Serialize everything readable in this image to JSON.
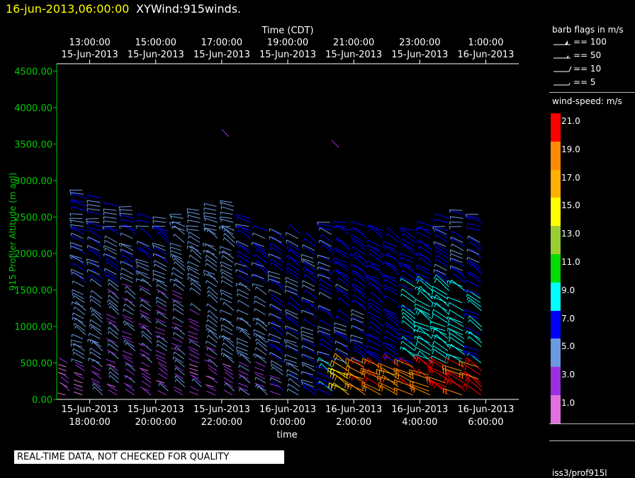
{
  "header": {
    "datetime": "16-jun-2013,06:00:00",
    "product": "XYWind:915winds."
  },
  "legend": {
    "barb_title": "barb flags in m/s",
    "barbs": [
      {
        "label": "== 100",
        "icon": "barb-flag-100"
      },
      {
        "label": "== 50",
        "icon": "barb-flag-50"
      },
      {
        "label": "== 10",
        "icon": "barb-flag-10"
      },
      {
        "label": "== 5",
        "icon": "barb-flag-5"
      }
    ],
    "colorbar_title": "wind-speed: m/s",
    "colorbar": [
      {
        "label": "21.0",
        "color": "#ff0000"
      },
      {
        "label": "19.0",
        "color": "#ff8c00"
      },
      {
        "label": "17.0",
        "color": "#ffb000"
      },
      {
        "label": "15.0",
        "color": "#ffff00"
      },
      {
        "label": "13.0",
        "color": "#9acd32"
      },
      {
        "label": "11.0",
        "color": "#00dd00"
      },
      {
        "label": "9.0",
        "color": "#00ffff"
      },
      {
        "label": "7.0",
        "color": "#0000ff"
      },
      {
        "label": "5.0",
        "color": "#6a9ae0"
      },
      {
        "label": "3.0",
        "color": "#9a30e0"
      },
      {
        "label": "1.0",
        "color": "#e070e0"
      }
    ],
    "station": "iss3/prof915l"
  },
  "disclaimer": "REAL-TIME DATA, NOT CHECKED FOR QUALITY",
  "chart_data": {
    "type": "scatter",
    "subtype": "wind-barb time-height",
    "ylabel": "915 Profiler Altitude (m agl)",
    "ylim": [
      0,
      4600
    ],
    "yticks": [
      "0.00",
      "500.00",
      "1000.00",
      "1500.00",
      "2000.00",
      "2500.00",
      "3000.00",
      "3500.00",
      "4000.00",
      "4500.00"
    ],
    "xlabel_bottom": "time",
    "xlabel_top": "Time (CDT)",
    "x_start": "15-Jun-2013 17:00",
    "x_end": "16-Jun-2013 07:00",
    "xticks_bottom": [
      {
        "t": "15-Jun-2013 18:00",
        "line1": "15-Jun-2013",
        "line2": "18:00:00"
      },
      {
        "t": "15-Jun-2013 20:00",
        "line1": "15-Jun-2013",
        "line2": "20:00:00"
      },
      {
        "t": "15-Jun-2013 22:00",
        "line1": "15-Jun-2013",
        "line2": "22:00:00"
      },
      {
        "t": "16-Jun-2013 00:00",
        "line1": "16-Jun-2013",
        "line2": "0:00:00"
      },
      {
        "t": "16-Jun-2013 02:00",
        "line1": "16-Jun-2013",
        "line2": "2:00:00"
      },
      {
        "t": "16-Jun-2013 04:00",
        "line1": "16-Jun-2013",
        "line2": "4:00:00"
      },
      {
        "t": "16-Jun-2013 06:00",
        "line1": "16-Jun-2013",
        "line2": "6:00:00"
      }
    ],
    "xticks_top": [
      {
        "t": "15-Jun-2013 18:00",
        "line1": "13:00:00",
        "line2": "15-Jun-2013"
      },
      {
        "t": "15-Jun-2013 20:00",
        "line1": "15:00:00",
        "line2": "15-Jun-2013"
      },
      {
        "t": "15-Jun-2013 22:00",
        "line1": "17:00:00",
        "line2": "15-Jun-2013"
      },
      {
        "t": "16-Jun-2013 00:00",
        "line1": "19:00:00",
        "line2": "15-Jun-2013"
      },
      {
        "t": "16-Jun-2013 02:00",
        "line1": "21:00:00",
        "line2": "15-Jun-2013"
      },
      {
        "t": "16-Jun-2013 04:00",
        "line1": "23:00:00",
        "line2": "15-Jun-2013"
      },
      {
        "t": "16-Jun-2013 06:00",
        "line1": "1:00:00",
        "line2": "16-Jun-2013"
      }
    ],
    "profiles": [
      {
        "t": "15-Jun-2013 17:30",
        "top": 550,
        "speed_low": 3,
        "speed_high": 3,
        "speed_sfc": 2
      },
      {
        "t": "15-Jun-2013 18:00",
        "top": 2900,
        "speed_low": 5,
        "speed_high": 6,
        "speed_sfc": 3
      },
      {
        "t": "15-Jun-2013 18:30",
        "top": 2800,
        "speed_low": 5,
        "speed_high": 6,
        "speed_sfc": 3
      },
      {
        "t": "15-Jun-2013 19:00",
        "top": 2650,
        "speed_low": 4,
        "speed_high": 6,
        "speed_sfc": 3
      },
      {
        "t": "15-Jun-2013 19:30",
        "top": 2650,
        "speed_low": 4,
        "speed_high": 6,
        "speed_sfc": 3
      },
      {
        "t": "15-Jun-2013 20:00",
        "top": 2500,
        "speed_low": 4,
        "speed_high": 6,
        "speed_sfc": 3
      },
      {
        "t": "15-Jun-2013 20:30",
        "top": 2500,
        "speed_low": 4,
        "speed_high": 6,
        "speed_sfc": 3
      },
      {
        "t": "15-Jun-2013 21:00",
        "top": 2550,
        "speed_low": 4,
        "speed_high": 5,
        "speed_sfc": 3
      },
      {
        "t": "15-Jun-2013 21:30",
        "top": 2600,
        "speed_low": 4,
        "speed_high": 5,
        "speed_sfc": 3
      },
      {
        "t": "15-Jun-2013 22:00",
        "top": 2650,
        "speed_low": 4,
        "speed_high": 5,
        "speed_sfc": 3
      },
      {
        "t": "15-Jun-2013 22:30",
        "top": 2700,
        "speed_low": 5,
        "speed_high": 5,
        "speed_sfc": 3
      },
      {
        "t": "15-Jun-2013 23:00",
        "top": 2500,
        "speed_low": 5,
        "speed_high": 6,
        "speed_sfc": 4
      },
      {
        "t": "15-Jun-2013 23:30",
        "top": 2350,
        "speed_low": 5,
        "speed_high": 6,
        "speed_sfc": 4
      },
      {
        "t": "16-Jun-2013 00:00",
        "top": 2350,
        "speed_low": 6,
        "speed_high": 6,
        "speed_sfc": 5
      },
      {
        "t": "16-Jun-2013 00:30",
        "top": 2300,
        "speed_low": 6,
        "speed_high": 6,
        "speed_sfc": 5
      },
      {
        "t": "16-Jun-2013 01:00",
        "top": 2200,
        "speed_low": 6,
        "speed_high": 6,
        "speed_sfc": 6
      },
      {
        "t": "16-Jun-2013 01:30",
        "top": 2450,
        "speed_low": 6,
        "speed_high": 6,
        "speed_sfc": 8
      },
      {
        "t": "16-Jun-2013 02:00",
        "top": 2450,
        "speed_low": 6,
        "speed_high": 7,
        "speed_sfc": 16
      },
      {
        "t": "16-Jun-2013 02:30",
        "top": 2400,
        "speed_low": 6,
        "speed_high": 7,
        "speed_sfc": 19
      },
      {
        "t": "16-Jun-2013 03:00",
        "top": 2350,
        "speed_low": 7,
        "speed_high": 7,
        "speed_sfc": 20
      },
      {
        "t": "16-Jun-2013 03:30",
        "top": 2300,
        "speed_low": 7,
        "speed_high": 7,
        "speed_sfc": 19
      },
      {
        "t": "16-Jun-2013 04:00",
        "top": 2350,
        "speed_low": 8,
        "speed_high": 7,
        "speed_sfc": 19
      },
      {
        "t": "16-Jun-2013 04:30",
        "top": 2400,
        "speed_low": 9,
        "speed_high": 7,
        "speed_sfc": 20
      },
      {
        "t": "16-Jun-2013 05:00",
        "top": 2500,
        "speed_low": 9,
        "speed_high": 6,
        "speed_sfc": 21
      },
      {
        "t": "16-Jun-2013 05:30",
        "top": 2600,
        "speed_low": 9,
        "speed_high": 6,
        "speed_sfc": 21
      },
      {
        "t": "16-Jun-2013 06:00",
        "top": 2550,
        "speed_low": 8,
        "speed_high": 6,
        "speed_sfc": 20
      }
    ],
    "isolated": [
      {
        "t": "15-Jun-2013 22:00",
        "alt": 3700,
        "speed": 3
      },
      {
        "t": "16-Jun-2013 01:20",
        "alt": 3550,
        "speed": 3
      }
    ]
  }
}
